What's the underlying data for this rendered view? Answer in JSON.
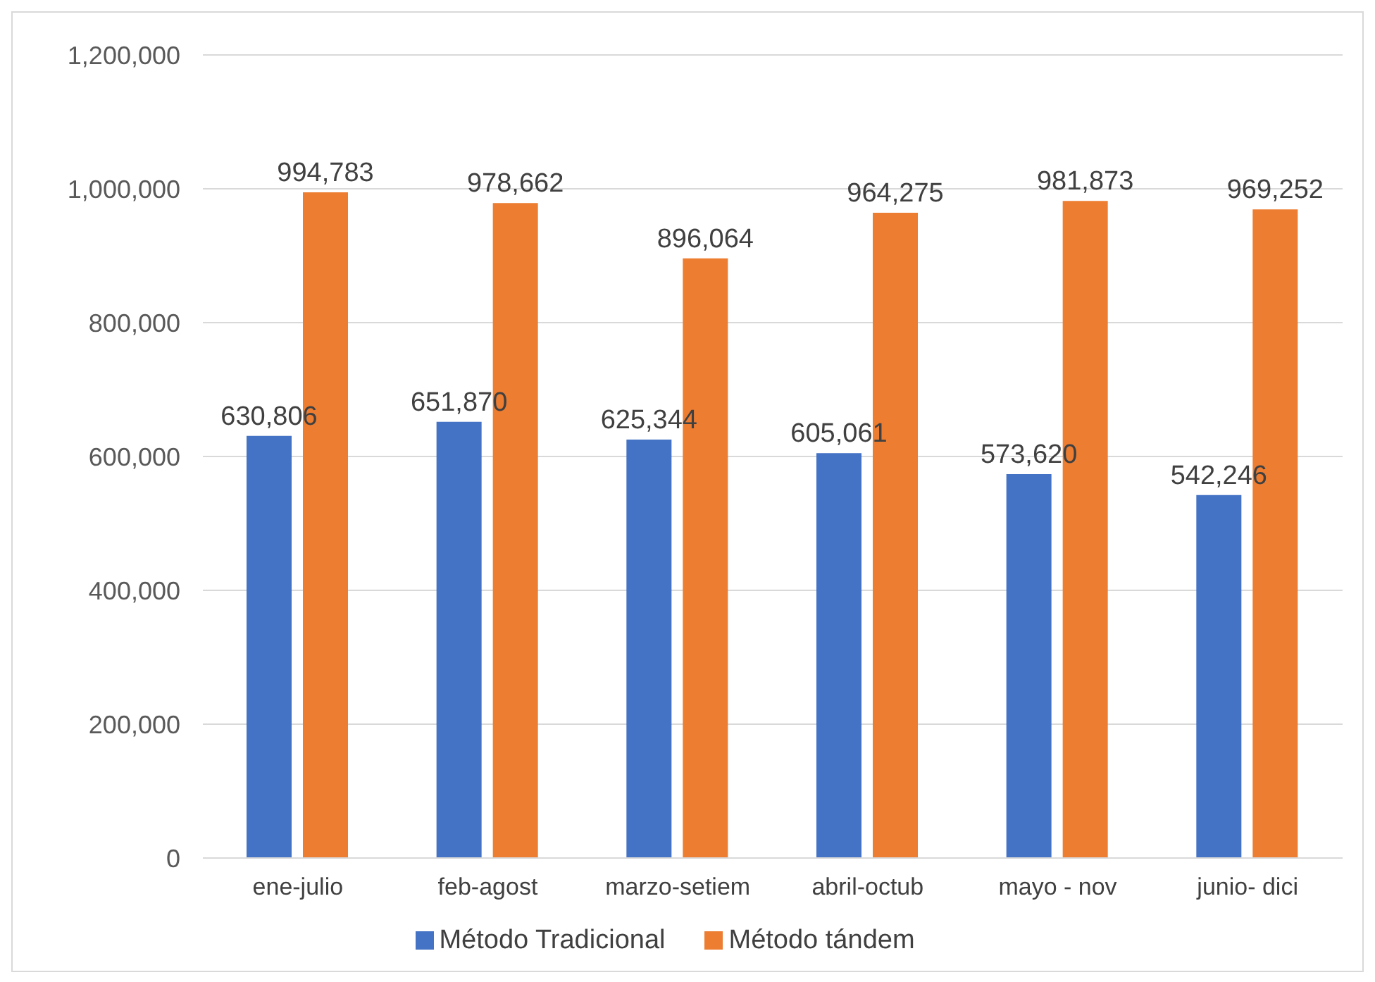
{
  "chart_data": {
    "type": "bar",
    "categories": [
      "ene-julio",
      "feb-agost",
      "marzo-setiem",
      "abril-octub",
      "mayo - nov",
      "junio- dici"
    ],
    "series": [
      {
        "name": "Método Tradicional",
        "color": "#4472c4",
        "values": [
          630806,
          651870,
          625344,
          605061,
          573620,
          542246
        ],
        "value_labels": [
          "630,806",
          "651,870",
          "625,344",
          "605,061",
          "573,620",
          "542,246"
        ]
      },
      {
        "name": "Método tándem",
        "color": "#ed7d31",
        "values": [
          994783,
          978662,
          896064,
          964275,
          981873,
          969252
        ],
        "value_labels": [
          "994,783",
          "978,662",
          "896,064",
          "964,275",
          "981,873",
          "969,252"
        ]
      }
    ],
    "ylim": [
      0,
      1200000
    ],
    "yticks": [
      {
        "value": 0,
        "label": "0"
      },
      {
        "value": 200000,
        "label": "200,000"
      },
      {
        "value": 400000,
        "label": "400,000"
      },
      {
        "value": 600000,
        "label": "600,000"
      },
      {
        "value": 800000,
        "label": "800,000"
      },
      {
        "value": 1000000,
        "label": "1,000,000"
      },
      {
        "value": 1200000,
        "label": "1,200,000"
      }
    ],
    "grid": "y",
    "legend": "bottom"
  }
}
